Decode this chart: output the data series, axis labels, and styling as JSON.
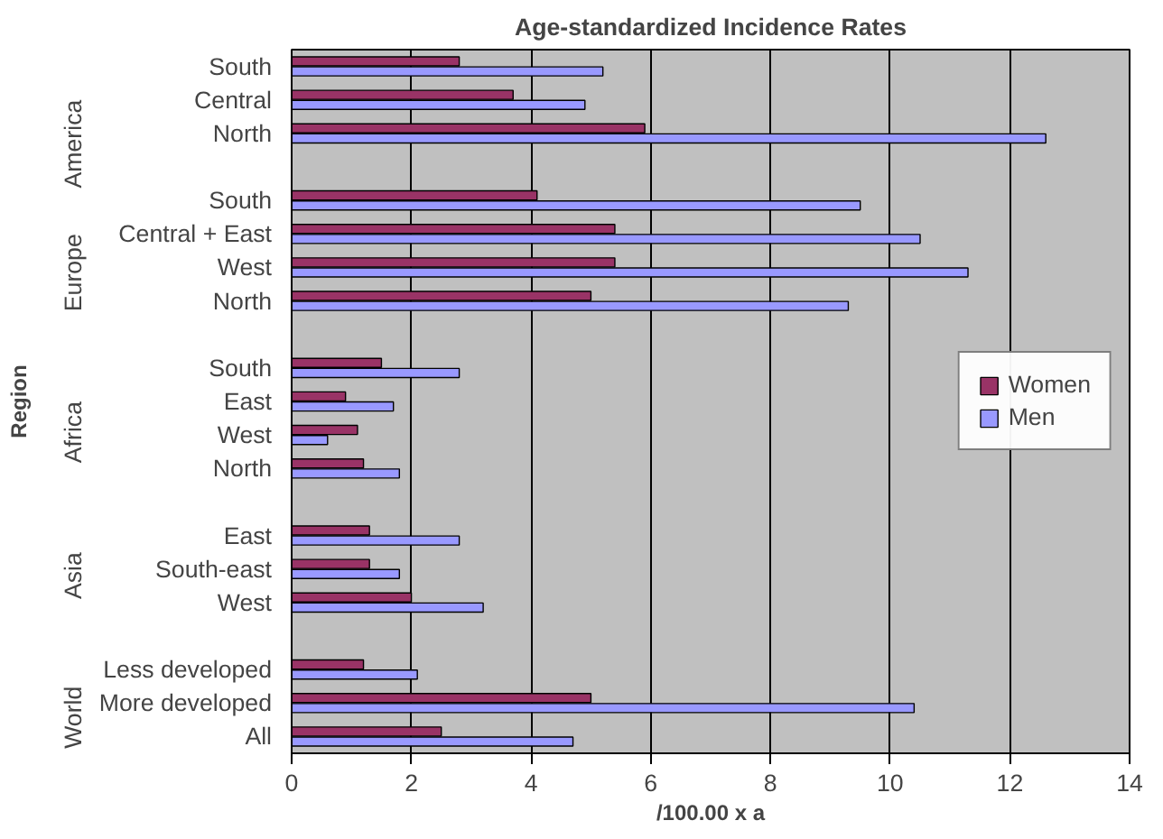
{
  "chart_data": {
    "type": "bar",
    "orientation": "horizontal",
    "title": "Age-standardized Incidence Rates",
    "xlabel": "/100.00 x a",
    "ylabel": "Region",
    "categories": [
      "South",
      "Central",
      "North",
      null,
      "South",
      "Central + East",
      "West",
      "North",
      null,
      "South",
      "East",
      "West",
      "North",
      null,
      "East",
      "South-east",
      "West",
      null,
      "Less developed",
      "More developed",
      "All"
    ],
    "annotations": [
      "America",
      "Europe",
      "Africa",
      "Asia",
      "World"
    ],
    "series": [
      {
        "name": "Women",
        "color": "#993366",
        "values": [
          2.8,
          3.7,
          5.9,
          null,
          4.1,
          5.4,
          5.4,
          5.0,
          null,
          1.5,
          0.9,
          1.1,
          1.2,
          null,
          1.3,
          1.3,
          2.0,
          null,
          1.2,
          5.0,
          2.5
        ]
      },
      {
        "name": "Men",
        "color": "#9999ff",
        "values": [
          5.2,
          4.9,
          12.6,
          null,
          9.5,
          10.5,
          11.3,
          9.3,
          null,
          2.8,
          1.7,
          0.6,
          1.8,
          null,
          2.8,
          1.8,
          3.2,
          null,
          2.1,
          10.4,
          4.7
        ]
      }
    ],
    "xlim": [
      0,
      14
    ],
    "xticks": [
      0,
      2,
      4,
      6,
      8,
      10,
      12,
      14
    ],
    "grid": "x",
    "legend": "right"
  }
}
